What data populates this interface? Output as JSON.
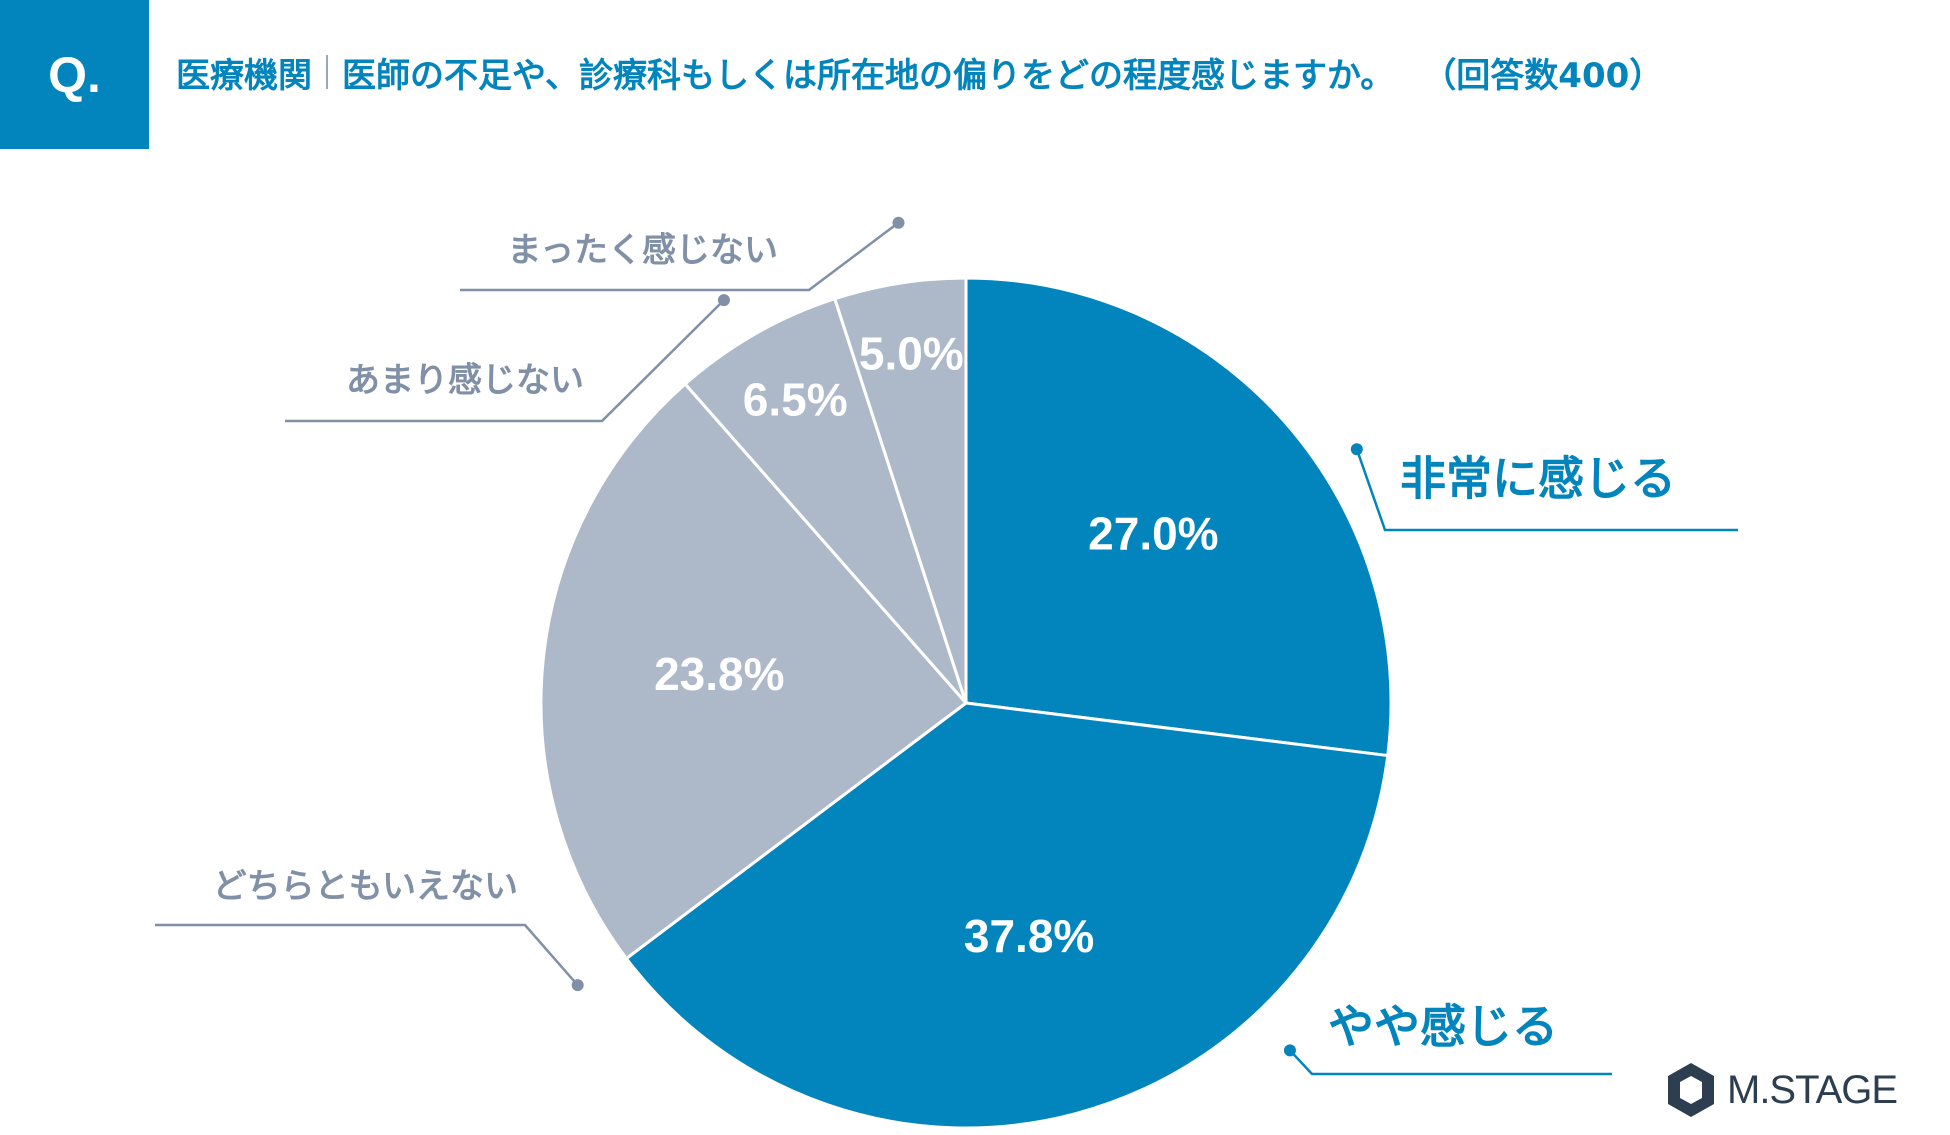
{
  "header": {
    "badge": "Q.",
    "subject": "医療機関",
    "question": "医師の不足や、診療科もしくは所在地の偏りをどの程度感じますか。",
    "count": "（回答数400）"
  },
  "chart_data": {
    "type": "pie",
    "title": "",
    "start_angle_deg": 0,
    "direction": "clockwise",
    "slices": [
      {
        "label": "非常に感じる",
        "value": 27.0,
        "display": "27.0%",
        "color": "#0284bd",
        "label_color": "#0284bd"
      },
      {
        "label": "やや感じる",
        "value": 37.8,
        "display": "37.8%",
        "color": "#0284bd",
        "label_color": "#0284bd"
      },
      {
        "label": "どちらともいえない",
        "value": 23.8,
        "display": "23.8%",
        "color": "#adb8c9",
        "label_color": "#8090a6"
      },
      {
        "label": "あまり感じない",
        "value": 6.5,
        "display": "6.5%",
        "color": "#adb8c9",
        "label_color": "#8090a6"
      },
      {
        "label": "まったく感じない",
        "value": 5.0,
        "display": "5.0%",
        "color": "#adb8c9",
        "label_color": "#8090a6"
      }
    ]
  },
  "brand": {
    "name": "M.STAGE",
    "color": "#2d3e50"
  }
}
